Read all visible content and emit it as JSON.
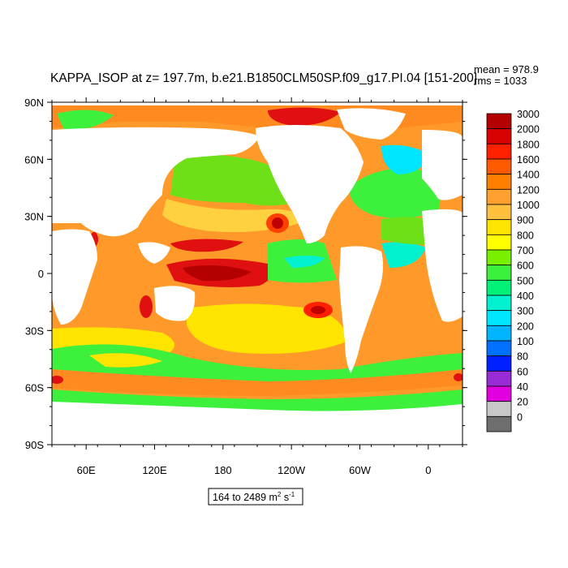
{
  "chart_data": {
    "type": "heatmap",
    "title": "KAPPA_ISOP at z= 197.7m, b.e21.B1850CLM50SP.f09_g17.PI.04 [151-200]",
    "stats": {
      "mean": "mean = 978.9",
      "rms": "rms = 1033"
    },
    "y_ticks": [
      "90N",
      "60N",
      "30N",
      "0",
      "30S",
      "60S",
      "90S"
    ],
    "x_ticks": [
      "60E",
      "120E",
      "180",
      "120W",
      "60W",
      "0"
    ],
    "range_label": {
      "prefix": "164 to 2489 m",
      "sup1": "2",
      "mid": " s",
      "sup2": "-1"
    },
    "colorbar": {
      "levels": [
        "3000",
        "2000",
        "1800",
        "1600",
        "1400",
        "1200",
        "1000",
        "900",
        "800",
        "700",
        "600",
        "500",
        "400",
        "300",
        "200",
        "100",
        "80",
        "60",
        "40",
        "20",
        "0"
      ],
      "colors": [
        "#b40000",
        "#d80000",
        "#ff2000",
        "#ff5a00",
        "#ff8000",
        "#ffa030",
        "#ffc040",
        "#ffe400",
        "#ffff00",
        "#78f000",
        "#3cf03c",
        "#00f078",
        "#00f0d0",
        "#00e6ff",
        "#00b4ff",
        "#0070ff",
        "#0020ff",
        "#9a2cd6",
        "#e000e0",
        "#c8c8c8",
        "#6e6e6e"
      ]
    }
  }
}
